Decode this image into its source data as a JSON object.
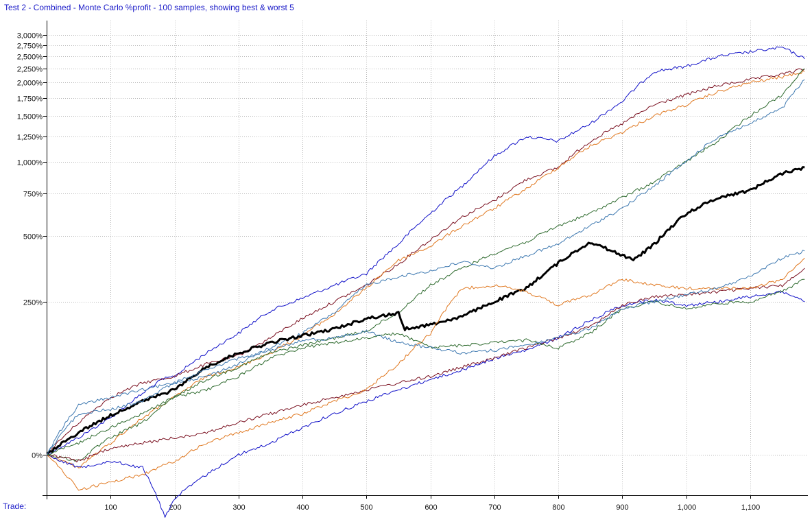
{
  "title": "Test 2 - Combined - Monte Carlo %profit - 100 samples, showing best & worst 5",
  "x_caption": "Trade:",
  "chart_data": {
    "type": "line",
    "title": "Test 2 - Combined - Monte Carlo %profit - 100 samples, showing best & worst 5",
    "xlabel": "Trade:",
    "ylabel": "",
    "xlim": [
      0,
      1190
    ],
    "x_ticks": [
      100,
      200,
      300,
      400,
      500,
      600,
      700,
      800,
      900,
      1000,
      1100
    ],
    "x_tick_labels": [
      "100",
      "200",
      "300",
      "400",
      "500",
      "600",
      "700",
      "800",
      "900",
      "1,000",
      "1,100"
    ],
    "y_ticks": [
      0,
      250,
      500,
      750,
      1000,
      1250,
      1500,
      1750,
      2000,
      2250,
      2500,
      2750,
      3000
    ],
    "y_tick_labels": [
      "0%",
      "250%",
      "500%",
      "750%",
      "1,000%",
      "1,250%",
      "1,500%",
      "1,750%",
      "2,000%",
      "2,250%",
      "2,500%",
      "2,750%",
      "3,000%"
    ],
    "y_scale": "log(1 + %profit)",
    "grid": true,
    "legend": "none",
    "series": [
      {
        "color": "#1010c8",
        "width": 1,
        "x": [
          0,
          50,
          100,
          150,
          180,
          200,
          250,
          300,
          350,
          400,
          450,
          500,
          550,
          600,
          650,
          700,
          750,
          800,
          850,
          900,
          950,
          1000,
          1050,
          1100,
          1150,
          1185
        ],
        "y": [
          0,
          15,
          35,
          65,
          85,
          90,
          130,
          170,
          225,
          260,
          300,
          340,
          460,
          620,
          800,
          1050,
          1250,
          1200,
          1400,
          1700,
          2200,
          2300,
          2500,
          2600,
          2700,
          2450
        ]
      },
      {
        "color": "#7a1020",
        "width": 1,
        "x": [
          0,
          50,
          100,
          150,
          200,
          250,
          300,
          350,
          400,
          450,
          500,
          550,
          600,
          650,
          700,
          750,
          800,
          850,
          900,
          950,
          1000,
          1050,
          1100,
          1150,
          1185
        ],
        "y": [
          0,
          30,
          60,
          80,
          90,
          110,
          125,
          160,
          205,
          250,
          300,
          375,
          480,
          600,
          700,
          850,
          950,
          1200,
          1400,
          1650,
          1800,
          1950,
          2050,
          2150,
          2250
        ]
      },
      {
        "color": "#e07820",
        "width": 1,
        "x": [
          0,
          50,
          100,
          150,
          200,
          250,
          300,
          350,
          400,
          450,
          500,
          550,
          600,
          650,
          700,
          750,
          800,
          850,
          900,
          950,
          1000,
          1050,
          1100,
          1150,
          1185
        ],
        "y": [
          0,
          -10,
          10,
          35,
          60,
          90,
          105,
          130,
          165,
          215,
          290,
          390,
          450,
          550,
          650,
          780,
          950,
          1150,
          1300,
          1500,
          1650,
          1850,
          2000,
          2100,
          2200
        ]
      },
      {
        "color": "#2e6a2e",
        "width": 1,
        "x": [
          0,
          50,
          100,
          150,
          200,
          250,
          300,
          350,
          400,
          450,
          500,
          550,
          600,
          650,
          700,
          750,
          800,
          850,
          900,
          950,
          1000,
          1050,
          1100,
          1150,
          1185
        ],
        "y": [
          0,
          -5,
          15,
          30,
          60,
          85,
          105,
          130,
          145,
          160,
          175,
          220,
          300,
          360,
          420,
          470,
          550,
          620,
          720,
          830,
          1000,
          1200,
          1500,
          1800,
          2250
        ]
      },
      {
        "color": "#3d78b0",
        "width": 1,
        "x": [
          0,
          50,
          100,
          150,
          200,
          250,
          300,
          350,
          400,
          450,
          500,
          550,
          600,
          650,
          700,
          750,
          800,
          850,
          900,
          950,
          1000,
          1050,
          1100,
          1150,
          1185
        ],
        "y": [
          0,
          50,
          60,
          70,
          80,
          90,
          110,
          140,
          170,
          220,
          300,
          330,
          350,
          385,
          360,
          410,
          460,
          550,
          650,
          800,
          1000,
          1250,
          1400,
          1600,
          2050
        ]
      },
      {
        "color": "#000000",
        "width": 3,
        "x": [
          0,
          50,
          100,
          150,
          200,
          250,
          300,
          350,
          400,
          450,
          500,
          550,
          560,
          600,
          650,
          700,
          750,
          800,
          850,
          900,
          920,
          950,
          1000,
          1050,
          1100,
          1150,
          1185
        ],
        "y": [
          0,
          20,
          38,
          55,
          70,
          105,
          130,
          150,
          165,
          180,
          205,
          218,
          180,
          190,
          210,
          250,
          290,
          380,
          470,
          410,
          395,
          460,
          620,
          720,
          770,
          900,
          950
        ]
      },
      {
        "color": "#1010c8",
        "width": 1,
        "x": [
          0,
          50,
          100,
          150,
          185,
          200,
          250,
          300,
          350,
          400,
          450,
          500,
          550,
          600,
          650,
          700,
          750,
          800,
          850,
          900,
          950,
          1000,
          1050,
          1100,
          1150,
          1185
        ],
        "y": [
          0,
          -10,
          -5,
          -10,
          -40,
          -30,
          -15,
          0,
          10,
          25,
          40,
          55,
          70,
          85,
          100,
          120,
          135,
          160,
          200,
          240,
          255,
          240,
          250,
          265,
          280,
          250
        ]
      },
      {
        "color": "#7a1020",
        "width": 1,
        "x": [
          0,
          50,
          100,
          150,
          200,
          250,
          300,
          350,
          400,
          450,
          500,
          550,
          600,
          650,
          700,
          750,
          800,
          850,
          900,
          950,
          1000,
          1050,
          1100,
          1150,
          1185
        ],
        "y": [
          0,
          -5,
          5,
          10,
          15,
          20,
          30,
          40,
          50,
          60,
          70,
          80,
          90,
          105,
          120,
          140,
          160,
          185,
          240,
          265,
          270,
          280,
          290,
          300,
          360
        ]
      },
      {
        "color": "#e07820",
        "width": 1,
        "x": [
          0,
          50,
          100,
          150,
          200,
          250,
          300,
          350,
          400,
          450,
          500,
          550,
          600,
          650,
          700,
          750,
          800,
          850,
          900,
          950,
          1000,
          1050,
          1100,
          1150,
          1185
        ],
        "y": [
          0,
          -25,
          -20,
          -15,
          -5,
          10,
          20,
          30,
          40,
          55,
          70,
          110,
          170,
          290,
          300,
          280,
          240,
          270,
          320,
          300,
          290,
          290,
          290,
          320,
          400
        ]
      },
      {
        "color": "#2e6a2e",
        "width": 1,
        "x": [
          0,
          50,
          100,
          150,
          200,
          250,
          300,
          350,
          400,
          450,
          500,
          550,
          600,
          650,
          700,
          750,
          800,
          850,
          900,
          950,
          1000,
          1050,
          1100,
          1150,
          1185
        ],
        "y": [
          0,
          10,
          25,
          40,
          60,
          70,
          90,
          120,
          140,
          150,
          160,
          170,
          140,
          145,
          150,
          155,
          140,
          170,
          230,
          250,
          230,
          245,
          250,
          280,
          320
        ]
      },
      {
        "color": "#3d78b0",
        "width": 1,
        "x": [
          0,
          50,
          100,
          150,
          200,
          250,
          300,
          350,
          400,
          450,
          500,
          550,
          600,
          650,
          700,
          750,
          800,
          850,
          900,
          950,
          1000,
          1050,
          1100,
          1150,
          1185
        ],
        "y": [
          0,
          40,
          45,
          55,
          80,
          100,
          120,
          135,
          155,
          160,
          175,
          150,
          140,
          130,
          135,
          145,
          160,
          180,
          230,
          250,
          270,
          290,
          330,
          400,
          430
        ]
      }
    ]
  }
}
